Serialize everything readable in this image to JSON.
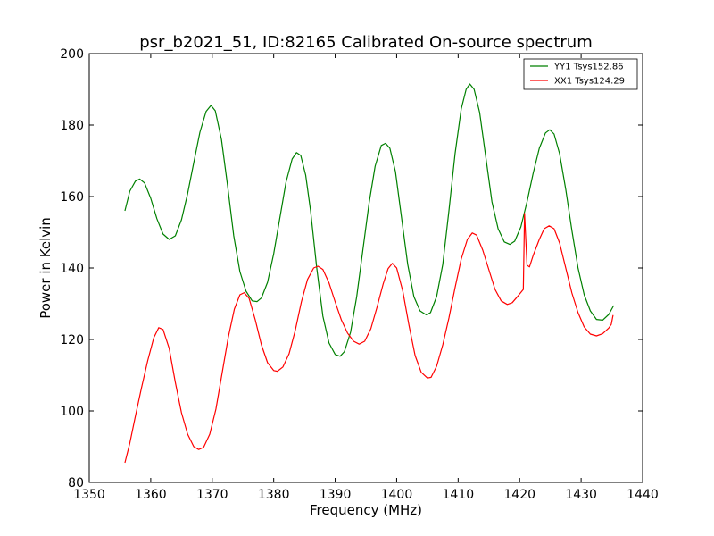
{
  "chart_data": {
    "type": "line",
    "title": "psr_b2021_51, ID:82165 Calibrated On-source spectrum",
    "xlabel": "Frequency (MHz)",
    "ylabel": "Power in Kelvin",
    "xlim": [
      1350,
      1440
    ],
    "ylim": [
      80,
      200
    ],
    "xticks": [
      1350,
      1360,
      1370,
      1380,
      1390,
      1400,
      1410,
      1420,
      1430,
      1440
    ],
    "yticks": [
      80,
      100,
      120,
      140,
      160,
      180,
      200
    ],
    "grid": false,
    "legend_position": "top-right",
    "series": [
      {
        "name": "YY1 Tsys152.86",
        "color": "#008000",
        "points": [
          [
            1355.8,
            156.0
          ],
          [
            1356.6,
            161.5
          ],
          [
            1357.5,
            164.3
          ],
          [
            1358.2,
            164.9
          ],
          [
            1359.0,
            163.8
          ],
          [
            1360.0,
            159.5
          ],
          [
            1361.0,
            153.8
          ],
          [
            1362.0,
            149.5
          ],
          [
            1363.0,
            148.0
          ],
          [
            1364.0,
            149.0
          ],
          [
            1365.0,
            153.5
          ],
          [
            1366.0,
            160.8
          ],
          [
            1367.0,
            169.5
          ],
          [
            1368.0,
            178.0
          ],
          [
            1369.0,
            183.8
          ],
          [
            1369.8,
            185.5
          ],
          [
            1370.5,
            184.0
          ],
          [
            1371.5,
            176.0
          ],
          [
            1372.5,
            163.0
          ],
          [
            1373.5,
            149.0
          ],
          [
            1374.5,
            139.0
          ],
          [
            1375.5,
            133.5
          ],
          [
            1376.5,
            130.8
          ],
          [
            1377.3,
            130.6
          ],
          [
            1378.0,
            131.6
          ],
          [
            1379.0,
            136.0
          ],
          [
            1380.0,
            144.0
          ],
          [
            1381.0,
            154.0
          ],
          [
            1382.0,
            164.0
          ],
          [
            1383.0,
            170.5
          ],
          [
            1383.7,
            172.3
          ],
          [
            1384.4,
            171.5
          ],
          [
            1385.2,
            166.0
          ],
          [
            1386.0,
            156.0
          ],
          [
            1387.0,
            140.0
          ],
          [
            1388.0,
            126.5
          ],
          [
            1389.0,
            119.0
          ],
          [
            1390.0,
            115.8
          ],
          [
            1390.8,
            115.3
          ],
          [
            1391.5,
            116.6
          ],
          [
            1392.5,
            122.0
          ],
          [
            1393.5,
            132.0
          ],
          [
            1394.5,
            145.0
          ],
          [
            1395.5,
            158.0
          ],
          [
            1396.5,
            168.5
          ],
          [
            1397.5,
            174.3
          ],
          [
            1398.2,
            174.9
          ],
          [
            1398.9,
            173.5
          ],
          [
            1399.8,
            167.0
          ],
          [
            1400.8,
            154.0
          ],
          [
            1401.8,
            141.0
          ],
          [
            1402.8,
            132.0
          ],
          [
            1403.8,
            128.0
          ],
          [
            1404.8,
            126.9
          ],
          [
            1405.5,
            127.5
          ],
          [
            1406.5,
            132.0
          ],
          [
            1407.5,
            141.0
          ],
          [
            1408.5,
            156.0
          ],
          [
            1409.5,
            172.0
          ],
          [
            1410.5,
            184.5
          ],
          [
            1411.3,
            190.0
          ],
          [
            1411.9,
            191.5
          ],
          [
            1412.6,
            190.0
          ],
          [
            1413.5,
            183.5
          ],
          [
            1414.5,
            171.0
          ],
          [
            1415.5,
            158.5
          ],
          [
            1416.5,
            151.0
          ],
          [
            1417.5,
            147.3
          ],
          [
            1418.4,
            146.6
          ],
          [
            1419.2,
            147.5
          ],
          [
            1420.2,
            151.5
          ],
          [
            1421.2,
            158.5
          ],
          [
            1422.2,
            166.5
          ],
          [
            1423.2,
            173.5
          ],
          [
            1424.2,
            177.8
          ],
          [
            1424.9,
            178.7
          ],
          [
            1425.6,
            177.5
          ],
          [
            1426.5,
            172.0
          ],
          [
            1427.5,
            162.0
          ],
          [
            1428.5,
            150.5
          ],
          [
            1429.5,
            140.0
          ],
          [
            1430.5,
            132.5
          ],
          [
            1431.5,
            128.0
          ],
          [
            1432.5,
            125.6
          ],
          [
            1433.5,
            125.4
          ],
          [
            1434.5,
            127.0
          ],
          [
            1435.3,
            129.5
          ]
        ]
      },
      {
        "name": "XX1 Tsys124.29",
        "color": "#ff0000",
        "points": [
          [
            1355.8,
            85.5
          ],
          [
            1356.6,
            91.0
          ],
          [
            1357.5,
            98.5
          ],
          [
            1358.5,
            106.5
          ],
          [
            1359.5,
            114.0
          ],
          [
            1360.5,
            120.5
          ],
          [
            1361.3,
            123.3
          ],
          [
            1362.0,
            122.8
          ],
          [
            1363.0,
            117.5
          ],
          [
            1364.0,
            108.0
          ],
          [
            1365.0,
            99.5
          ],
          [
            1366.0,
            93.5
          ],
          [
            1367.0,
            90.0
          ],
          [
            1367.8,
            89.2
          ],
          [
            1368.6,
            89.8
          ],
          [
            1369.6,
            93.5
          ],
          [
            1370.6,
            100.5
          ],
          [
            1371.6,
            110.5
          ],
          [
            1372.6,
            120.5
          ],
          [
            1373.6,
            128.5
          ],
          [
            1374.5,
            132.5
          ],
          [
            1375.2,
            133.1
          ],
          [
            1376.0,
            131.5
          ],
          [
            1377.0,
            125.5
          ],
          [
            1378.0,
            118.5
          ],
          [
            1379.0,
            113.5
          ],
          [
            1380.0,
            111.3
          ],
          [
            1380.6,
            111.1
          ],
          [
            1381.5,
            112.3
          ],
          [
            1382.5,
            116.0
          ],
          [
            1383.5,
            122.5
          ],
          [
            1384.5,
            130.5
          ],
          [
            1385.5,
            136.8
          ],
          [
            1386.5,
            140.0
          ],
          [
            1387.2,
            140.5
          ],
          [
            1388.0,
            139.6
          ],
          [
            1389.0,
            135.8
          ],
          [
            1390.0,
            130.5
          ],
          [
            1391.0,
            125.5
          ],
          [
            1392.0,
            121.8
          ],
          [
            1393.0,
            119.5
          ],
          [
            1393.9,
            118.7
          ],
          [
            1394.8,
            119.5
          ],
          [
            1395.8,
            123.0
          ],
          [
            1396.8,
            129.0
          ],
          [
            1397.8,
            135.5
          ],
          [
            1398.6,
            139.8
          ],
          [
            1399.3,
            141.3
          ],
          [
            1400.0,
            140.0
          ],
          [
            1401.0,
            133.5
          ],
          [
            1402.0,
            124.0
          ],
          [
            1403.0,
            115.5
          ],
          [
            1404.0,
            110.8
          ],
          [
            1405.0,
            109.2
          ],
          [
            1405.6,
            109.4
          ],
          [
            1406.5,
            112.5
          ],
          [
            1407.5,
            118.5
          ],
          [
            1408.5,
            126.0
          ],
          [
            1409.5,
            134.5
          ],
          [
            1410.5,
            142.5
          ],
          [
            1411.5,
            148.0
          ],
          [
            1412.3,
            149.8
          ],
          [
            1413.0,
            149.2
          ],
          [
            1414.0,
            145.0
          ],
          [
            1415.0,
            139.5
          ],
          [
            1416.0,
            134.0
          ],
          [
            1417.0,
            130.8
          ],
          [
            1418.0,
            129.8
          ],
          [
            1418.8,
            130.3
          ],
          [
            1419.8,
            132.3
          ],
          [
            1420.6,
            134.0
          ],
          [
            1420.8,
            155.3
          ],
          [
            1421.2,
            140.8
          ],
          [
            1421.6,
            140.3
          ],
          [
            1422.2,
            143.5
          ],
          [
            1423.2,
            148.0
          ],
          [
            1424.0,
            151.0
          ],
          [
            1424.8,
            151.8
          ],
          [
            1425.6,
            151.0
          ],
          [
            1426.5,
            147.0
          ],
          [
            1427.5,
            140.0
          ],
          [
            1428.5,
            133.0
          ],
          [
            1429.5,
            127.5
          ],
          [
            1430.5,
            123.5
          ],
          [
            1431.5,
            121.5
          ],
          [
            1432.5,
            121.0
          ],
          [
            1433.5,
            121.6
          ],
          [
            1434.5,
            123.2
          ],
          [
            1434.9,
            124.2
          ],
          [
            1435.2,
            126.8
          ]
        ]
      }
    ]
  }
}
